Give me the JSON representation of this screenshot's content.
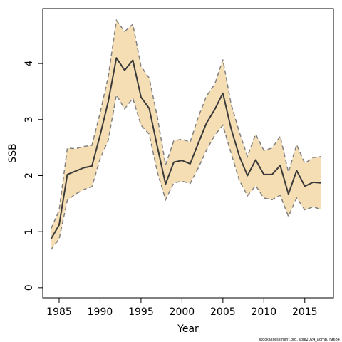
{
  "chart_data": {
    "type": "line",
    "xlabel": "Year",
    "ylabel": "SSB",
    "xlim": [
      1983.0,
      2018.5
    ],
    "ylim": [
      -0.18,
      4.98
    ],
    "xticks": [
      "1985",
      "1990",
      "1995",
      "2000",
      "2005",
      "2010",
      "2015"
    ],
    "yticks": [
      "0",
      "1",
      "2",
      "3",
      "4"
    ],
    "x": [
      1984,
      1985,
      1986,
      1987,
      1988,
      1989,
      1990,
      1991,
      1992,
      1993,
      1994,
      1995,
      1996,
      1997,
      1998,
      1999,
      2000,
      2001,
      2002,
      2003,
      2004,
      2005,
      2006,
      2007,
      2008,
      2009,
      2010,
      2011,
      2012,
      2013,
      2014,
      2015,
      2016,
      2017
    ],
    "series": [
      {
        "values": [
          0.87,
          1.12,
          2.02,
          2.08,
          2.14,
          2.17,
          2.72,
          3.32,
          4.1,
          3.88,
          4.06,
          3.4,
          3.2,
          2.51,
          1.85,
          2.24,
          2.27,
          2.21,
          2.58,
          2.94,
          3.18,
          3.47,
          2.84,
          2.35,
          2.0,
          2.28,
          2.02,
          2.02,
          2.18,
          1.67,
          2.09,
          1.81,
          1.88,
          1.87
        ]
      }
    ],
    "band_upper": [
      1.05,
      1.38,
      2.49,
      2.48,
      2.52,
      2.54,
      3.12,
      3.76,
      4.77,
      4.57,
      4.7,
      3.95,
      3.74,
      3.04,
      2.19,
      2.62,
      2.65,
      2.6,
      3.05,
      3.42,
      3.63,
      4.07,
      3.28,
      2.78,
      2.34,
      2.74,
      2.45,
      2.49,
      2.7,
      2.06,
      2.55,
      2.22,
      2.32,
      2.34
    ],
    "band_lower": [
      0.68,
      0.87,
      1.56,
      1.67,
      1.75,
      1.8,
      2.3,
      2.63,
      3.44,
      3.19,
      3.38,
      2.9,
      2.74,
      2.06,
      1.57,
      1.87,
      1.9,
      1.86,
      2.14,
      2.46,
      2.72,
      2.9,
      2.4,
      1.92,
      1.64,
      1.82,
      1.6,
      1.57,
      1.65,
      1.27,
      1.6,
      1.39,
      1.44,
      1.4
    ],
    "colors": {
      "band": "#f5deb3",
      "band_edge": "#808080",
      "line": "#3a3a3a"
    },
    "grid": false,
    "footnote": "stockassessment.org, sole2024_admb, r9684"
  }
}
